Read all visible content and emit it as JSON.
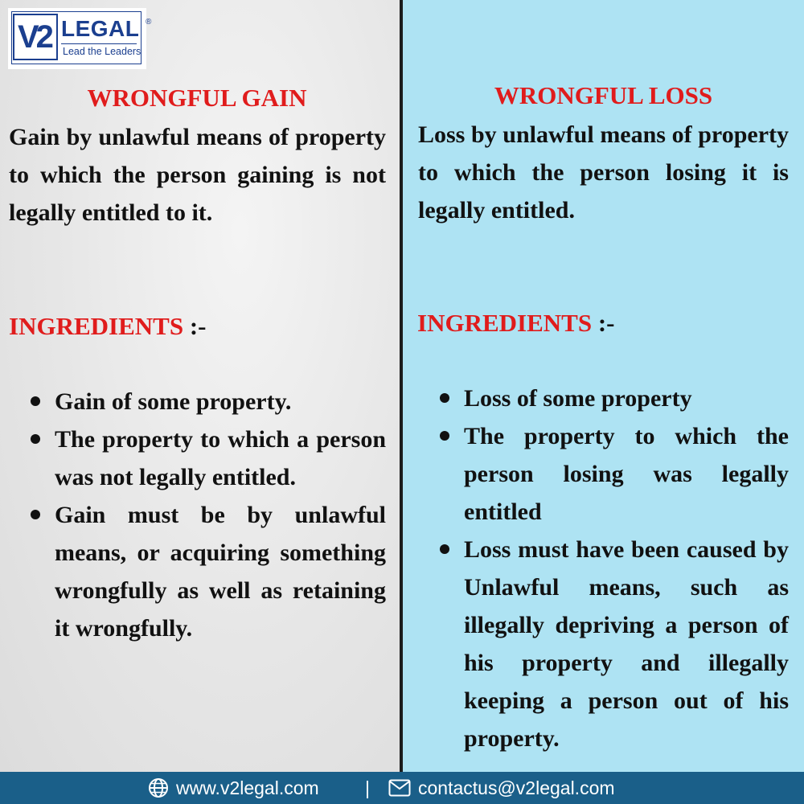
{
  "logo": {
    "mark": "V2",
    "name": "LEGAL",
    "tagline": "Lead the Leaders",
    "registered": "®"
  },
  "left": {
    "title": "WRONGFUL GAIN",
    "definition": "Gain by unlawful means of property to which the person gaining is not legally entitled to it.",
    "ingredients_word": "INGREDIENTS",
    "ingredients_suffix": " :-",
    "bullets": [
      "Gain of some property.",
      "The property to which a person was not legally entitled.",
      "Gain must be by unlawful means, or acquiring something wrongfully as well as retaining it wrongfully."
    ]
  },
  "right": {
    "title": "WRONGFUL LOSS",
    "definition": "Loss by unlawful means of property to which the person losing it is legally entitled.",
    "ingredients_word": "INGREDIENTS",
    "ingredients_suffix": " :-",
    "bullets": [
      "Loss of some property",
      "The property to which the person losing was legally entitled",
      "Loss must have been caused by Unlawful means, such as illegally depriving a person of his property and illegally keeping a person out of his property."
    ]
  },
  "footer": {
    "website": "www.v2legal.com",
    "separator": "|",
    "email": "contactus@v2legal.com",
    "globe_icon": "globe-icon",
    "mail_icon": "mail-icon"
  },
  "colors": {
    "heading_red": "#e01c1c",
    "right_panel_bg": "#aee3f3",
    "footer_bg": "#1a5f89",
    "brand_blue": "#1b3f8f"
  }
}
